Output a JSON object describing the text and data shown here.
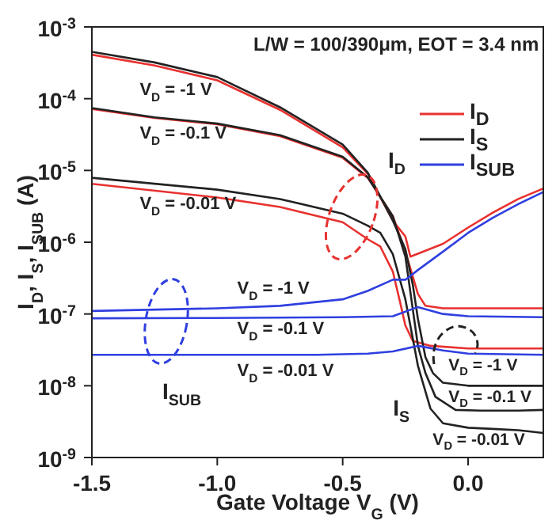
{
  "chart_data": {
    "type": "line",
    "xlabel": "Gate Voltage V$_{G}$ (V)",
    "ylabel": "I$_{D}$, I$_{S}$, I$_{SUB}$ (A)",
    "xlim": [
      -1.5,
      0.3
    ],
    "xticks": [
      {
        "value": -1.5,
        "label": "-1.5"
      },
      {
        "value": -1,
        "label": "-1.0"
      },
      {
        "value": -0.5,
        "label": "-0.5"
      },
      {
        "value": 0,
        "label": "0.0"
      }
    ],
    "ylim": [
      1e-09,
      0.001
    ],
    "yticks": [
      {
        "value": 1e-09,
        "label": "10$^{-9}$"
      },
      {
        "value": 1e-08,
        "label": "10$^{-8}$"
      },
      {
        "value": 1e-07,
        "label": "10$^{-7}$"
      },
      {
        "value": 1e-06,
        "label": "10$^{-6}$"
      },
      {
        "value": 1e-05,
        "label": "10$^{-5}$"
      },
      {
        "value": 0.0001,
        "label": "10$^{-4}$"
      },
      {
        "value": 0.001,
        "label": "10$^{-3}$"
      }
    ],
    "log": "y",
    "legend": "top right",
    "marker": "none",
    "line_style": "solid",
    "series": [
      {
        "name": "I$_{D}$",
        "color": "#e8312f",
        "x": [
          -1.5,
          -1.25,
          -1,
          -0.75,
          -0.5,
          -0.4,
          -0.3,
          -0.25,
          -0.23,
          -0.1,
          0,
          0.1,
          0.2,
          0.3
        ],
        "values": [
          0.00041,
          0.00029,
          0.00018,
          7e-05,
          2.1e-05,
          9e-06,
          2e-06,
          1.2e-06,
          6.3e-07,
          9.5e-07,
          1.6e-06,
          2.6e-06,
          4e-06,
          5.6e-06
        ]
      },
      {
        "color": "#e8312f",
        "x": [
          -1.5,
          -1.25,
          -1,
          -0.75,
          -0.5,
          -0.4,
          -0.3,
          -0.25,
          -0.2,
          -0.17,
          -0.1,
          0,
          0.3
        ],
        "values": [
          7.2e-05,
          5.4e-05,
          4.4e-05,
          3e-05,
          1.5e-05,
          7.9e-06,
          2.3e-06,
          7.4e-07,
          1.9e-07,
          1.3e-07,
          1.2e-07,
          1.2e-07,
          1.2e-07
        ]
      },
      {
        "color": "#e8312f",
        "x": [
          -1.5,
          -1,
          -0.75,
          -0.5,
          -0.4,
          -0.35,
          -0.3,
          -0.27,
          -0.25,
          -0.22,
          -0.15,
          0,
          0.3
        ],
        "values": [
          6.5e-06,
          4.2e-06,
          3.1e-06,
          1.9e-06,
          1.1e-06,
          8.7e-07,
          3.9e-07,
          1.4e-07,
          6.9e-08,
          4.2e-08,
          3.6e-08,
          3.3e-08,
          3.3e-08
        ]
      },
      {
        "name": "I$_{S}$",
        "color": "#222222",
        "x": [
          -1.5,
          -1.25,
          -1,
          -0.75,
          -0.5,
          -0.4,
          -0.3,
          -0.25,
          -0.22,
          -0.2,
          -0.17,
          -0.14,
          -0.1,
          0,
          0.3
        ],
        "values": [
          0.00045,
          0.00032,
          0.0002,
          7.6e-05,
          2.3e-05,
          9.3e-06,
          2e-06,
          8e-07,
          2.5e-07,
          8.5e-08,
          2.5e-08,
          1.5e-08,
          1.1e-08,
          1e-08,
          1e-08
        ]
      },
      {
        "color": "#222222",
        "x": [
          -1.5,
          -1.25,
          -1,
          -0.75,
          -0.5,
          -0.4,
          -0.3,
          -0.25,
          -0.2,
          -0.17,
          -0.13,
          -0.05,
          0.05,
          0.2,
          0.3
        ],
        "values": [
          7.4e-05,
          5.5e-05,
          4.5e-05,
          3.1e-05,
          1.55e-05,
          8e-06,
          2.3e-06,
          6.3e-07,
          3.6e-08,
          1.5e-08,
          7e-09,
          4.6e-09,
          4.5e-09,
          4.5e-09,
          4.6e-09
        ]
      },
      {
        "color": "#222222",
        "x": [
          -1.5,
          -1,
          -0.75,
          -0.5,
          -0.4,
          -0.35,
          -0.3,
          -0.25,
          -0.2,
          -0.15,
          -0.1,
          0,
          0.1,
          0.2,
          0.3
        ],
        "values": [
          7.9e-06,
          5.4e-06,
          4e-06,
          2.5e-06,
          1.7e-06,
          1.35e-06,
          6.8e-07,
          1.6e-07,
          1.9e-08,
          4.8e-09,
          3e-09,
          2.6e-09,
          2.5e-09,
          2.4e-09,
          2.2e-09
        ]
      },
      {
        "name": "I$_{SUB}$",
        "color": "#2f3fe0",
        "x": [
          -1.5,
          -1,
          -0.75,
          -0.5,
          -0.4,
          -0.3,
          -0.25,
          -0.2,
          -0.1,
          0,
          0.1,
          0.2,
          0.3
        ],
        "values": [
          1.1e-07,
          1.2e-07,
          1.3e-07,
          1.6e-07,
          2.1e-07,
          3e-07,
          3e-07,
          4.1e-07,
          7.4e-07,
          1.35e-06,
          2.2e-06,
          3.4e-06,
          5e-06
        ]
      },
      {
        "color": "#2f3fe0",
        "x": [
          -1.5,
          -1,
          -0.5,
          -0.3,
          -0.2,
          -0.1,
          0,
          0.3
        ],
        "values": [
          8.7e-08,
          8.8e-08,
          9e-08,
          9.3e-08,
          1.25e-07,
          1e-07,
          9.3e-08,
          9e-08
        ]
      },
      {
        "color": "#2f3fe0",
        "x": [
          -1.5,
          -1.2,
          -0.9,
          -0.6,
          -0.4,
          -0.3,
          -0.2,
          -0.1,
          0,
          0.3
        ],
        "values": [
          2.7e-08,
          2.7e-08,
          2.7e-08,
          2.7e-08,
          2.8e-08,
          3e-08,
          3.6e-08,
          3.1e-08,
          2.8e-08,
          2.7e-08
        ]
      }
    ],
    "annotations": [
      "L/W = 100/390μm, EOT = 3.4 nm",
      "V$_{D}$ = -1 V",
      "V$_{D}$ = -0.1 V",
      "V$_{D}$ = -0.01 V",
      "V$_{D}$ = -1 V",
      "V$_{D}$ = -0.1 V",
      "V$_{D}$ = -0.01 V",
      "V$_{D}$ = -1 V",
      "V$_{D}$ = -0.1 V",
      "V$_{D}$ = -0.01 V",
      "I$_{D}$",
      "I$_{S}$",
      "I$_{SUB}$"
    ]
  }
}
